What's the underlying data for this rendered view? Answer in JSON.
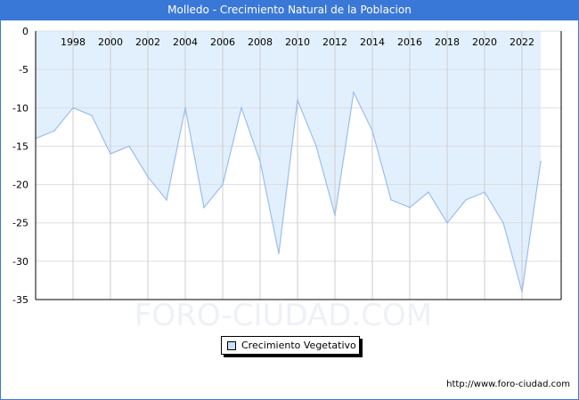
{
  "title": "Molledo - Crecimiento Natural de la Poblacion",
  "url": "http://www.foro-ciudad.com",
  "watermark": "FORO-CIUDAD.COM",
  "colors": {
    "accent": "#3a78d8",
    "fill": "#e2f0fe",
    "line": "#9bbdee"
  },
  "chart_data": {
    "type": "area",
    "title": "Molledo - Crecimiento Natural de la Poblacion",
    "xlabel": "",
    "ylabel": "",
    "x": [
      1996,
      1997,
      1998,
      1999,
      2000,
      2001,
      2002,
      2003,
      2004,
      2005,
      2006,
      2007,
      2008,
      2009,
      2010,
      2011,
      2012,
      2013,
      2014,
      2015,
      2016,
      2017,
      2018,
      2019,
      2020,
      2021,
      2022,
      2023
    ],
    "series": [
      {
        "name": "Crecimiento Vegetativo",
        "values": [
          -14,
          -13,
          -10,
          -11,
          -16,
          -15,
          -19,
          -22,
          -10,
          -23,
          -20,
          -10,
          -17,
          -29,
          -9,
          -15,
          -24,
          -8,
          -13,
          -22,
          -23,
          -21,
          -25,
          -22,
          -21,
          -25,
          -34,
          -17
        ]
      }
    ],
    "xticks": [
      "1998",
      "2000",
      "2002",
      "2004",
      "2006",
      "2008",
      "2010",
      "2012",
      "2014",
      "2016",
      "2018",
      "2020",
      "2022"
    ],
    "yticks": [
      "0",
      "-5",
      "-10",
      "-15",
      "-20",
      "-25",
      "-30",
      "-35"
    ],
    "ylim": [
      -35,
      0
    ],
    "xlim": [
      1996,
      2024
    ],
    "grid": true,
    "legend": "bottom-center"
  }
}
